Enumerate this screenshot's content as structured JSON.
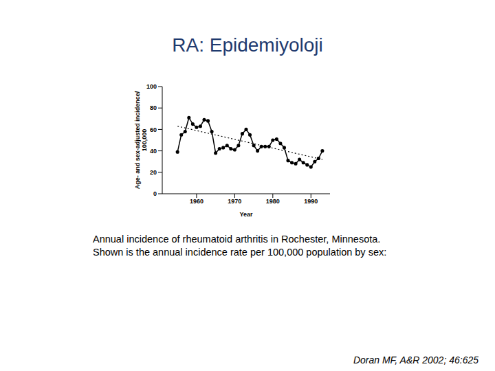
{
  "chart_data": {
    "type": "line",
    "title": "RA: Epidemiyoloji",
    "caption": [
      "Annual incidence of rheumatoid arthritis in Rochester, Minnesota.",
      "Shown is the annual incidence rate per 100,000 population by sex:"
    ],
    "source": "Doran MF, A&R 2002; 46:625",
    "x_label": "Year",
    "y_label": [
      "Age- and sex-adjusted incidence/",
      "100,000"
    ],
    "x": [
      1955,
      1956,
      1957,
      1958,
      1959,
      1960,
      1961,
      1962,
      1963,
      1964,
      1965,
      1966,
      1967,
      1968,
      1969,
      1970,
      1971,
      1972,
      1973,
      1974,
      1975,
      1976,
      1977,
      1978,
      1979,
      1980,
      1981,
      1982,
      1983,
      1984,
      1985,
      1986,
      1987,
      1988,
      1989,
      1990,
      1991,
      1992,
      1993
    ],
    "series": [
      {
        "values": [
          39,
          55,
          58,
          71,
          65,
          62,
          63,
          69,
          68,
          58,
          38,
          42,
          43,
          45,
          42,
          41,
          45,
          56,
          60,
          55,
          45,
          40,
          44,
          44,
          44,
          50,
          51,
          47,
          43,
          31,
          29,
          28,
          32,
          29,
          27,
          25,
          30,
          33,
          40
        ],
        "color": "#000000",
        "marker": "circle",
        "line_style": "solid"
      }
    ],
    "trend": {
      "x": [
        1955,
        1993
      ],
      "values": [
        63,
        32
      ],
      "color": "#000000",
      "line_style": "dotted"
    },
    "xlim": [
      1951,
      1995
    ],
    "ylim": [
      0,
      100
    ],
    "xticks": [
      1960,
      1970,
      1980,
      1990
    ],
    "yticks": [
      0,
      20,
      40,
      60,
      80,
      100
    ],
    "grid": false
  }
}
